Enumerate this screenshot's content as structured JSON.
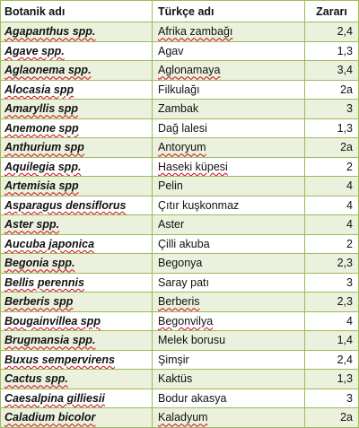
{
  "table": {
    "headers": {
      "botanic": "Botanik adı",
      "turkish": "Türkçe adı",
      "risk": "Zararı"
    },
    "rows": [
      {
        "botanic": "Agapanthus spp.",
        "turkish": "Afrika zambağı",
        "risk": "2,4"
      },
      {
        "botanic": "Agave spp.",
        "turkish": "Agav",
        "risk": "1,3"
      },
      {
        "botanic": "Aglaonema spp.",
        "turkish": "Aglonamaya",
        "risk": "3,4"
      },
      {
        "botanic": "Alocasia spp",
        "turkish": "Filkulağı",
        "risk": "2a"
      },
      {
        "botanic": "Amaryllis spp",
        "turkish": "Zambak",
        "risk": "3"
      },
      {
        "botanic": "Anemone spp",
        "turkish": "Dağ lalesi",
        "risk": "1,3"
      },
      {
        "botanic": "Anthurium spp",
        "turkish": "Antoryum",
        "risk": "2a"
      },
      {
        "botanic": "Aquilegia spp.",
        "turkish": "Haseki küpesi",
        "risk": "2"
      },
      {
        "botanic": "Artemisia spp",
        "turkish": "Pelin",
        "risk": "4"
      },
      {
        "botanic": "Asparagus densiflorus",
        "turkish": "Çıtır kuşkonmaz",
        "risk": "4"
      },
      {
        "botanic": "Aster spp.",
        "turkish": "Aster",
        "risk": "4"
      },
      {
        "botanic": "Aucuba japonica",
        "turkish": "Çilli akuba",
        "risk": "2"
      },
      {
        "botanic": "Begonia spp.",
        "turkish": "Begonya",
        "risk": "2,3"
      },
      {
        "botanic": "Bellis perennis",
        "turkish": "Saray patı",
        "risk": "3"
      },
      {
        "botanic": "Berberis spp",
        "turkish": "Berberis",
        "risk": "2,3"
      },
      {
        "botanic": "Bougainvillea spp",
        "turkish": "Begonvilya",
        "risk": "4"
      },
      {
        "botanic": "Brugmansia spp.",
        "turkish": "Melek borusu",
        "risk": "1,4"
      },
      {
        "botanic": "Buxus sempervirens",
        "turkish": "Şimşir",
        "risk": "2,4"
      },
      {
        "botanic": "Cactus spp.",
        "turkish": "Kaktüs",
        "risk": "1,3"
      },
      {
        "botanic": "Caesalpina gilliesii",
        "turkish": "Bodur akasya",
        "risk": "3"
      },
      {
        "botanic": "Caladium bicolor",
        "turkish": "Kaladyum",
        "risk": "2a"
      }
    ]
  }
}
